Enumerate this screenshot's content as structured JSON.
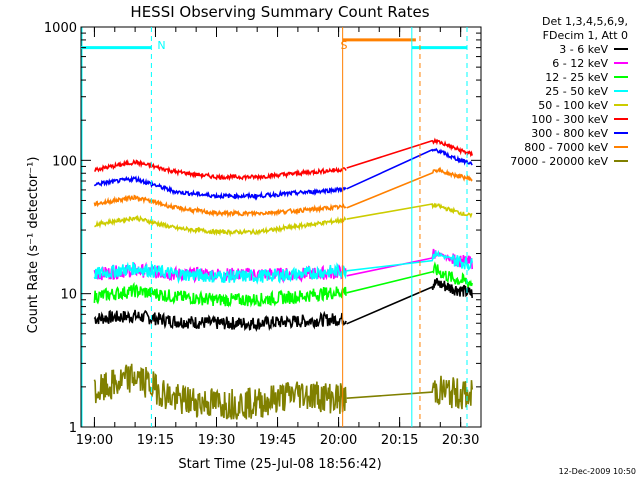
{
  "chart_data": {
    "type": "line",
    "title": "HESSI Observing Summary Count Rates",
    "xlabel": "Start Time (25-Jul-08 18:56:42)",
    "ylabel": "Count Rate (s⁻¹ detector⁻¹)",
    "yscale": "log",
    "ylim": [
      1,
      1000
    ],
    "xlim": [
      "18:56:42",
      "20:35:00"
    ],
    "x_ticks": [
      "19:00",
      "19:15",
      "19:30",
      "19:45",
      "20:00",
      "20:15",
      "20:30"
    ],
    "y_ticks": [
      "1",
      "10",
      "100",
      "1000"
    ],
    "legend_position": "top-right, outside plot",
    "legend_header": [
      "Det 1,3,4,5,6,9,",
      "FDecim 1, Att 0"
    ],
    "grid": false,
    "series": [
      {
        "name": "3 - 6 keV",
        "color": "#000000",
        "x": [
          "19:00",
          "19:10",
          "19:20",
          "19:30",
          "19:40",
          "19:50",
          "20:02",
          "20:24",
          "20:28",
          "20:33"
        ],
        "values": [
          6.5,
          6.8,
          6.2,
          6.0,
          6.0,
          6.2,
          6.5,
          12,
          11,
          10
        ]
      },
      {
        "name": "6 - 12 keV",
        "color": "#ff00ff",
        "x": [
          "19:00",
          "19:10",
          "19:20",
          "19:30",
          "19:40",
          "19:50",
          "20:02",
          "20:24",
          "20:28",
          "20:33"
        ],
        "values": [
          14,
          15,
          14,
          14,
          14,
          14,
          14.5,
          20,
          18,
          17
        ]
      },
      {
        "name": "12 - 25 keV",
        "color": "#00ff00",
        "x": [
          "19:00",
          "19:10",
          "19:20",
          "19:30",
          "19:40",
          "19:50",
          "20:02",
          "20:24",
          "20:28",
          "20:33"
        ],
        "values": [
          9.5,
          10.5,
          9.5,
          9.0,
          9.0,
          9.5,
          10.5,
          15,
          13,
          12
        ]
      },
      {
        "name": "25 - 50 keV",
        "color": "#00ffff",
        "x": [
          "19:00",
          "19:10",
          "19:20",
          "19:30",
          "19:40",
          "19:50",
          "20:02",
          "20:24",
          "20:28",
          "20:33"
        ],
        "values": [
          14,
          15.5,
          14,
          13.5,
          13.5,
          14,
          15,
          20,
          18,
          16.5
        ]
      },
      {
        "name": "50 - 100 keV",
        "color": "#cccc00",
        "x": [
          "19:00",
          "19:10",
          "19:20",
          "19:30",
          "19:40",
          "19:50",
          "20:02",
          "20:24",
          "20:28",
          "20:33"
        ],
        "values": [
          33,
          37,
          31,
          29,
          29,
          32,
          36,
          46,
          42,
          38
        ]
      },
      {
        "name": "100 - 300 keV",
        "color": "#ff0000",
        "x": [
          "19:00",
          "19:10",
          "19:20",
          "19:30",
          "19:40",
          "19:50",
          "20:02",
          "20:24",
          "20:28",
          "20:33"
        ],
        "values": [
          85,
          97,
          82,
          75,
          75,
          80,
          86,
          140,
          125,
          110
        ]
      },
      {
        "name": "300 - 800 keV",
        "color": "#0000ff",
        "x": [
          "19:00",
          "19:10",
          "19:20",
          "19:30",
          "19:40",
          "19:50",
          "20:02",
          "20:24",
          "20:28",
          "20:33"
        ],
        "values": [
          66,
          73,
          58,
          54,
          54,
          57,
          61,
          120,
          105,
          94
        ]
      },
      {
        "name": "800 - 7000 keV",
        "color": "#ff8000",
        "x": [
          "19:00",
          "19:10",
          "19:20",
          "19:30",
          "19:40",
          "19:50",
          "20:02",
          "20:24",
          "20:28",
          "20:33"
        ],
        "values": [
          47,
          53,
          44,
          40,
          40,
          42,
          45,
          85,
          78,
          72
        ]
      },
      {
        "name": "7000 - 20000 keV",
        "color": "#808000",
        "x": [
          "19:00",
          "19:10",
          "19:20",
          "19:30",
          "19:40",
          "19:50",
          "20:02",
          "20:24",
          "20:28",
          "20:33"
        ],
        "values": [
          1.8,
          2.4,
          1.6,
          1.5,
          1.5,
          1.8,
          1.6,
          1.9,
          1.8,
          1.7
        ]
      }
    ],
    "annotations": [
      {
        "text": "N",
        "x": "19:14",
        "color": "#00ffff"
      },
      {
        "text": "S",
        "x": "19:59",
        "color": "#ff8000"
      }
    ],
    "footer": "12-Dec-2009 10:50"
  }
}
